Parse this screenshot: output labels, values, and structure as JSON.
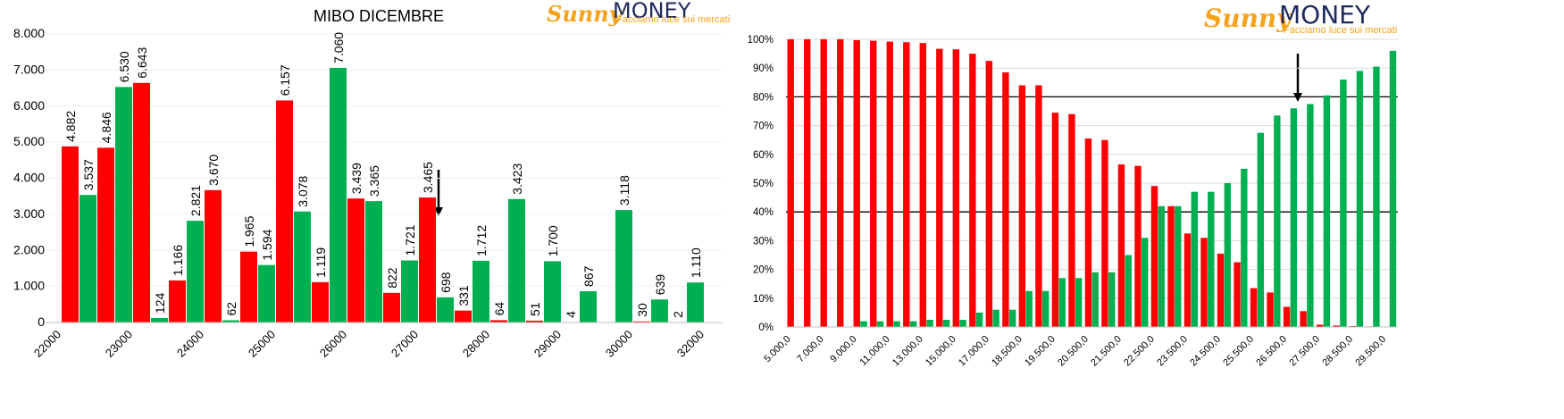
{
  "logo": {
    "brand": "Sunny",
    "name": "MONEY",
    "tagline": "Facciamo luce sui mercati"
  },
  "chart_data": [
    {
      "type": "bar",
      "title": "MIBO DICEMBRE",
      "categories": [
        "22000",
        null,
        "23000",
        null,
        "24000",
        null,
        "25000",
        null,
        "26000",
        null,
        "27000",
        null,
        "28000",
        null,
        "29000",
        null,
        "30000",
        null,
        "32000"
      ],
      "series": [
        {
          "color": "#00b050",
          "values": [
            null,
            3537,
            6530,
            124,
            2821,
            62,
            1594,
            3078,
            7060,
            3365,
            1721,
            698,
            1712,
            3423,
            1700,
            867,
            3118,
            639,
            1110
          ],
          "value_labels": [
            null,
            "3.537",
            "6.530",
            "124",
            "2.821",
            "62",
            "1.594",
            "3.078",
            "7.060",
            "3.365",
            "1.721",
            "698",
            "1.712",
            "3.423",
            "1.700",
            "867",
            "3.118",
            "639",
            "1.110"
          ]
        },
        {
          "color": "#ff0000",
          "values": [
            4882,
            4846,
            6643,
            1166,
            3670,
            1965,
            6157,
            1119,
            3439,
            822,
            3465,
            331,
            64,
            51,
            4,
            null,
            30,
            2,
            null
          ],
          "value_labels": [
            "4.882",
            "4.846",
            "6.643",
            "1.166",
            "3.670",
            "1.965",
            "6.157",
            "1.119",
            "3.439",
            "822",
            "3.465",
            "331",
            "64",
            "51",
            "4",
            null,
            "30",
            "2",
            null
          ]
        }
      ],
      "ylim": [
        0,
        8000
      ],
      "yticks": [
        0,
        {
          "value": 1000,
          "label": "1.000"
        },
        {
          "value": 2000,
          "label": "2.000"
        },
        {
          "value": 3000,
          "label": "3.000"
        },
        {
          "value": 4000,
          "label": "4.000"
        },
        {
          "value": 5000,
          "label": "5.000"
        },
        {
          "value": 6000,
          "label": "6.000"
        },
        {
          "value": 7000,
          "label": "7.000"
        },
        {
          "value": 8000,
          "label": "8.000"
        }
      ],
      "grid": true
    },
    {
      "type": "bar",
      "categories": [
        "5.000,0",
        null,
        "7.000,0",
        null,
        "9.000,0",
        null,
        "11.000,0",
        null,
        "13.000,0",
        null,
        "15.000,0",
        null,
        "17.000,0",
        null,
        "18.500,0",
        null,
        "19.500,0",
        null,
        "20.500,0",
        null,
        "21.500,0",
        null,
        "22.500,0",
        null,
        "23.500,0",
        null,
        "24.500,0",
        null,
        "25.500,0",
        null,
        "26.500,0",
        null,
        "27.500,0",
        null,
        "28.500,0",
        null,
        "29.500,0"
      ],
      "series": [
        {
          "color": "#ff0000",
          "values": [
            100,
            100,
            100,
            100,
            99.7,
            99.5,
            99.2,
            99,
            98.7,
            96.7,
            96.5,
            95,
            92.5,
            88.5,
            84,
            84,
            74.5,
            74,
            65.5,
            65,
            56.5,
            56,
            49,
            42,
            32.5,
            31,
            25.5,
            22.5,
            13.5,
            12,
            7,
            5.5,
            0.8,
            0.5,
            0.3,
            0.2,
            0.1
          ]
        },
        {
          "color": "#00b050",
          "values": [
            0,
            0,
            0,
            0,
            2,
            2,
            2,
            2,
            2.5,
            2.5,
            2.5,
            5,
            6,
            6,
            12.5,
            12.5,
            17,
            17,
            19,
            19,
            25,
            31,
            42,
            42,
            47,
            47,
            50,
            55,
            67.5,
            73.5,
            76,
            77.5,
            80.5,
            86,
            89,
            90.5,
            96
          ]
        }
      ],
      "ylim": [
        0,
        100
      ],
      "yticks": [
        {
          "value": 0,
          "label": "0%"
        },
        {
          "value": 10,
          "label": "10%"
        },
        {
          "value": 20,
          "label": "20%"
        },
        {
          "value": 30,
          "label": "30%"
        },
        {
          "value": 40,
          "label": "40%"
        },
        {
          "value": 50,
          "label": "50%"
        },
        {
          "value": 60,
          "label": "60%"
        },
        {
          "value": 70,
          "label": "70%"
        },
        {
          "value": 80,
          "label": "80%"
        },
        {
          "value": 90,
          "label": "90%"
        },
        {
          "value": 100,
          "label": "100%"
        }
      ],
      "grid": true,
      "reference_lines": [
        40,
        80
      ]
    }
  ]
}
